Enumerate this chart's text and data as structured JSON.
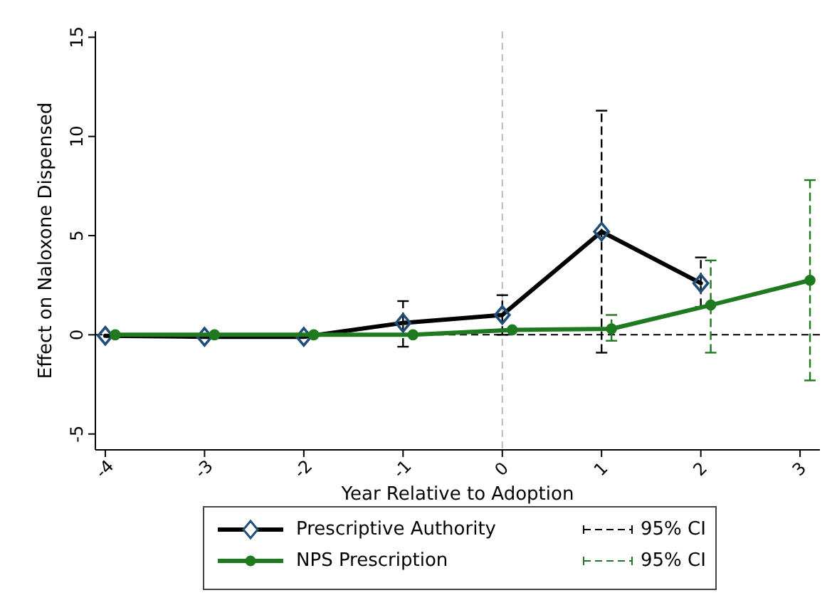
{
  "chart_data": {
    "type": "line",
    "xlabel": "Year Relative to Adoption",
    "ylabel": "Effect on Naloxone Dispensed",
    "xlim": [
      -4.1,
      3.2
    ],
    "xticks": [
      -4,
      -3,
      -2,
      -1,
      0,
      1,
      2,
      3
    ],
    "ylim": [
      -5.8,
      15.3
    ],
    "yticks": [
      -5,
      0,
      5,
      10,
      15
    ],
    "grid": false,
    "legend": "bottom",
    "line_style": "solid",
    "series": [
      {
        "name": "Prescriptive Authority",
        "color": "#000000",
        "marker": "diamond",
        "x": [
          -4,
          -3,
          -2,
          -1,
          0,
          1,
          2
        ],
        "values": [
          -0.05,
          -0.1,
          -0.1,
          0.6,
          1.0,
          5.2,
          2.6
        ],
        "errors": [
          null,
          null,
          null,
          [
            -0.6,
            1.7
          ],
          [
            0,
            2.0
          ],
          [
            -0.9,
            11.3
          ],
          [
            1.4,
            3.9
          ]
        ]
      },
      {
        "name": "NPS Prescription",
        "color": "#1f7a1f",
        "marker": "circle",
        "x": [
          -3.9,
          -2.9,
          -1.9,
          -0.9,
          0.1,
          1.1,
          2.1,
          3.1
        ],
        "values": [
          0,
          0,
          0,
          0,
          0.25,
          0.3,
          1.5,
          2.75
        ],
        "errors": [
          null,
          null,
          null,
          null,
          null,
          [
            -0.3,
            1.0
          ],
          [
            -0.9,
            3.75
          ],
          [
            -2.3,
            7.8
          ]
        ]
      }
    ],
    "ref_lines": [
      {
        "axis": "y",
        "value": 0,
        "color": "#000000",
        "line_style": "dashed"
      },
      {
        "axis": "x",
        "value": 0,
        "color": "#bbbbbb",
        "line_style": "dashed"
      }
    ],
    "annotations": [
      "95% CI",
      "95% CI"
    ]
  }
}
